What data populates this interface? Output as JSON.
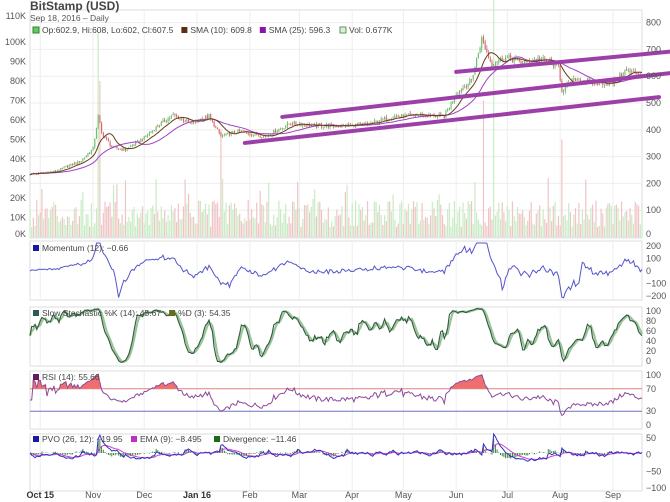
{
  "header": {
    "title": "BitStamp (USD)",
    "subtitle": "Sep 18, 2016 – Daily"
  },
  "legend": {
    "ohlc": "Op:602.9, Hi:608, Lo:602, Cl:607.5",
    "sma10": "SMA (10): 609.8",
    "sma25": "SMA (25): 596.3",
    "vol": "Vol: 0.677K",
    "momentum": "Momentum (12): −0.66",
    "stoch_k": "Slow Stochastic %K (14): 45.67",
    "stoch_d": "%D (3): 54.35",
    "rsi": "RSI (14): 55.66",
    "pvo": "PVO (26, 12): −19.95",
    "ema": "EMA (9): −8.495",
    "divergence": "Divergence: −11.46"
  },
  "colors": {
    "up": "#6cc36c",
    "down": "#d96a6a",
    "vol_up": "#c8ebc4",
    "vol_down": "#efc4c4",
    "sma10": "#6b3a1a",
    "sma25": "#a040c8",
    "trendline": "#9c3fa8",
    "momentum": "#5555cc",
    "stoch_k": "#2f5a3a",
    "stoch_d": "#9cc49c",
    "rsi": "#8a4a9a",
    "rsi_fill": "#ee5555",
    "pvo": "#3030c0",
    "ema": "#d040d0",
    "divergence": "#2a7a2a"
  },
  "chart_data": {
    "type": "candlestick",
    "title": "BitStamp (USD)",
    "start_date": "2015-09-25",
    "end_date": "2016-09-18",
    "close_keypoints": [
      [
        "2015-09-25",
        235
      ],
      [
        "2015-10-10",
        245
      ],
      [
        "2015-10-25",
        285
      ],
      [
        "2015-11-01",
        330
      ],
      [
        "2015-11-04",
        450
      ],
      [
        "2015-11-06",
        390
      ],
      [
        "2015-11-12",
        335
      ],
      [
        "2015-11-20",
        325
      ],
      [
        "2015-12-01",
        370
      ],
      [
        "2015-12-10",
        420
      ],
      [
        "2015-12-18",
        455
      ],
      [
        "2015-12-28",
        425
      ],
      [
        "2016-01-08",
        450
      ],
      [
        "2016-01-15",
        375
      ],
      [
        "2016-01-25",
        395
      ],
      [
        "2016-02-10",
        375
      ],
      [
        "2016-02-25",
        425
      ],
      [
        "2016-03-10",
        415
      ],
      [
        "2016-03-25",
        415
      ],
      [
        "2016-04-10",
        420
      ],
      [
        "2016-04-25",
        450
      ],
      [
        "2016-05-10",
        455
      ],
      [
        "2016-05-25",
        450
      ],
      [
        "2016-06-01",
        535
      ],
      [
        "2016-06-10",
        585
      ],
      [
        "2016-06-16",
        740
      ],
      [
        "2016-06-22",
        640
      ],
      [
        "2016-06-25",
        660
      ],
      [
        "2016-07-01",
        670
      ],
      [
        "2016-07-10",
        650
      ],
      [
        "2016-07-20",
        665
      ],
      [
        "2016-07-31",
        640
      ],
      [
        "2016-08-02",
        545
      ],
      [
        "2016-08-10",
        590
      ],
      [
        "2016-08-20",
        575
      ],
      [
        "2016-09-01",
        575
      ],
      [
        "2016-09-08",
        620
      ],
      [
        "2016-09-18",
        607.5
      ]
    ],
    "volume_spikes_k": [
      [
        "2015-11-04",
        105
      ],
      [
        "2015-11-05",
        80
      ],
      [
        "2016-01-15",
        55
      ],
      [
        "2016-06-17",
        70
      ],
      [
        "2016-06-23",
        210
      ],
      [
        "2016-08-02",
        50
      ]
    ],
    "trendlines": [
      {
        "from": [
          "2016-06-01",
          616
        ],
        "to": [
          "2016-10-05",
          692
        ]
      },
      {
        "from": [
          "2016-02-20",
          448
        ],
        "to": [
          "2016-10-05",
          612
        ]
      },
      {
        "from": [
          "2016-01-29",
          351
        ],
        "to": [
          "2016-09-28",
          522
        ]
      }
    ],
    "price_axis": {
      "ticks": [
        0,
        100,
        200,
        300,
        400,
        500,
        600,
        700,
        800
      ],
      "range": [
        0,
        800
      ],
      "side": "right"
    },
    "volume_axis": {
      "ticks": [
        "0K",
        "10K",
        "20K",
        "30K",
        "40K",
        "50K",
        "60K",
        "70K",
        "80K",
        "90K",
        "100K",
        "110K"
      ],
      "side": "left"
    },
    "momentum_axis": {
      "ticks": [
        "200",
        "100",
        "0",
        "−100",
        "−200"
      ]
    },
    "stoch_axis": {
      "ticks": [
        "100",
        "80",
        "60",
        "40",
        "20",
        "0"
      ]
    },
    "rsi_axis": {
      "ticks": [
        "100",
        "70",
        "30",
        "0"
      ],
      "levels": [
        70,
        30
      ]
    },
    "pvo_axis": {
      "ticks": [
        "50",
        "0",
        "−50",
        "−100"
      ]
    },
    "x_labels": [
      {
        "label": "Oct 15",
        "date": "2015-10-01",
        "bold": true
      },
      {
        "label": "Nov",
        "date": "2015-11-01"
      },
      {
        "label": "Dec",
        "date": "2015-12-01"
      },
      {
        "label": "Jan 16",
        "date": "2016-01-01",
        "bold": true
      },
      {
        "label": "Feb",
        "date": "2016-02-01"
      },
      {
        "label": "Mar",
        "date": "2016-03-01"
      },
      {
        "label": "Apr",
        "date": "2016-04-01"
      },
      {
        "label": "May",
        "date": "2016-05-01"
      },
      {
        "label": "Jun",
        "date": "2016-06-01"
      },
      {
        "label": "Jul",
        "date": "2016-07-01"
      },
      {
        "label": "Aug",
        "date": "2016-08-01"
      },
      {
        "label": "Sep",
        "date": "2016-09-01"
      }
    ],
    "grid": true
  }
}
